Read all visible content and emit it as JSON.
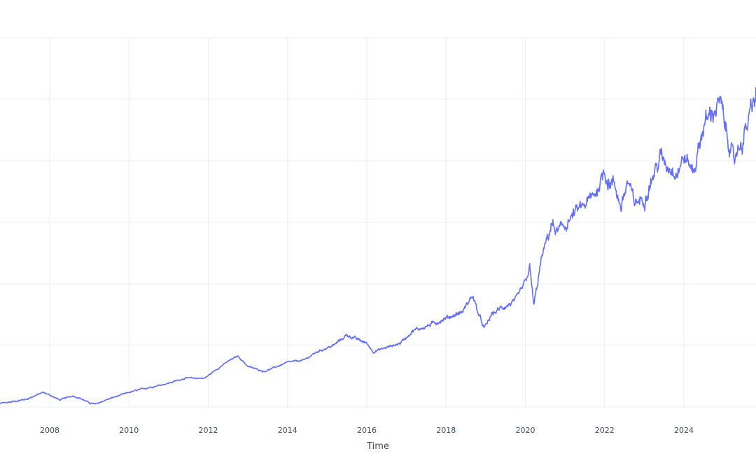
{
  "chart_data": {
    "type": "line",
    "title": "",
    "xlabel": "Time",
    "ylabel": "",
    "x_ticks": [
      "2008",
      "2010",
      "2012",
      "2014",
      "2016",
      "2018",
      "2020",
      "2022",
      "2024"
    ],
    "xlim": [
      "2006-08-01",
      "2026-01-01"
    ],
    "grid": true,
    "legend": "none",
    "series": [
      {
        "color": "#636efa",
        "points": [
          [
            "2006-08-01",
            0.0
          ],
          [
            "2007-01-01",
            0.05
          ],
          [
            "2007-06-01",
            0.12
          ],
          [
            "2007-11-01",
            0.28
          ],
          [
            "2008-01-01",
            0.22
          ],
          [
            "2008-04-01",
            0.1
          ],
          [
            "2008-08-01",
            0.2
          ],
          [
            "2008-10-01",
            0.15
          ],
          [
            "2009-01-01",
            0.03
          ],
          [
            "2009-03-01",
            0.0
          ],
          [
            "2009-06-01",
            0.1
          ],
          [
            "2010-01-01",
            0.28
          ],
          [
            "2010-06-01",
            0.38
          ],
          [
            "2011-01-01",
            0.5
          ],
          [
            "2011-06-01",
            0.62
          ],
          [
            "2011-12-01",
            0.62
          ],
          [
            "2012-03-01",
            0.8
          ],
          [
            "2012-07-01",
            1.02
          ],
          [
            "2012-10-01",
            1.15
          ],
          [
            "2013-01-01",
            0.9
          ],
          [
            "2013-06-01",
            0.78
          ],
          [
            "2013-10-01",
            0.9
          ],
          [
            "2014-01-01",
            1.0
          ],
          [
            "2014-06-01",
            1.05
          ],
          [
            "2014-10-01",
            1.25
          ],
          [
            "2015-03-01",
            1.4
          ],
          [
            "2015-07-01",
            1.65
          ],
          [
            "2015-10-01",
            1.55
          ],
          [
            "2016-01-01",
            1.45
          ],
          [
            "2016-03-01",
            1.25
          ],
          [
            "2016-07-01",
            1.35
          ],
          [
            "2016-11-01",
            1.45
          ],
          [
            "2017-03-01",
            1.75
          ],
          [
            "2017-07-01",
            1.85
          ],
          [
            "2018-01-01",
            2.05
          ],
          [
            "2018-06-01",
            2.2
          ],
          [
            "2018-09-01",
            2.6
          ],
          [
            "2018-11-01",
            2.1
          ],
          [
            "2018-12-20",
            1.8
          ],
          [
            "2019-03-01",
            2.15
          ],
          [
            "2019-06-01",
            2.3
          ],
          [
            "2019-10-01",
            2.45
          ],
          [
            "2020-01-01",
            2.9
          ],
          [
            "2020-02-10",
            3.25
          ],
          [
            "2020-03-20",
            2.35
          ],
          [
            "2020-06-01",
            3.5
          ],
          [
            "2020-09-01",
            4.3
          ],
          [
            "2020-10-15",
            4.1
          ],
          [
            "2021-01-01",
            4.25
          ],
          [
            "2021-04-01",
            4.55
          ],
          [
            "2021-07-01",
            4.75
          ],
          [
            "2021-09-01",
            4.9
          ],
          [
            "2021-11-01",
            5.15
          ],
          [
            "2022-01-01",
            5.6
          ],
          [
            "2022-02-01",
            5.3
          ],
          [
            "2022-04-01",
            5.25
          ],
          [
            "2022-06-01",
            4.7
          ],
          [
            "2022-08-01",
            5.3
          ],
          [
            "2022-10-01",
            4.8
          ],
          [
            "2023-01-01",
            4.9
          ],
          [
            "2023-03-01",
            5.3
          ],
          [
            "2023-06-01",
            5.9
          ],
          [
            "2023-08-01",
            5.7
          ],
          [
            "2023-11-01",
            5.55
          ],
          [
            "2024-01-01",
            5.9
          ],
          [
            "2024-04-01",
            5.55
          ],
          [
            "2024-07-01",
            6.65
          ],
          [
            "2024-09-01",
            6.9
          ],
          [
            "2024-12-01",
            7.2
          ],
          [
            "2025-01-15",
            6.6
          ],
          [
            "2025-03-01",
            6.2
          ],
          [
            "2025-04-08",
            5.7
          ],
          [
            "2025-05-01",
            6.05
          ],
          [
            "2025-07-01",
            6.3
          ],
          [
            "2025-09-01",
            6.9
          ],
          [
            "2025-11-01",
            7.4
          ],
          [
            "2025-12-31",
            7.75
          ]
        ]
      }
    ]
  }
}
